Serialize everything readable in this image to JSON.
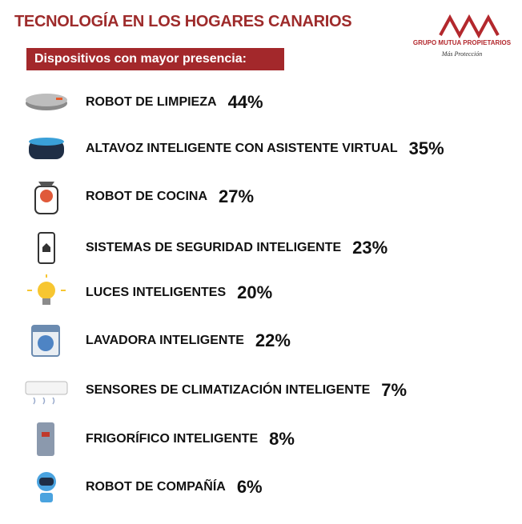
{
  "header": {
    "title": "TECNOLOGÍA EN LOS HOGARES CANARIOS",
    "subtitle": "Dispositivos con mayor presencia:"
  },
  "logo": {
    "name": "GRUPO MUTUA PROPIETARIOS",
    "tagline": "Más Protección"
  },
  "items": [
    {
      "label": "ROBOT DE LIMPIEZA",
      "value": "44%"
    },
    {
      "label": "ALTAVOZ INTELIGENTE CON ASISTENTE VIRTUAL",
      "value": "35%"
    },
    {
      "label": "ROBOT DE COCINA",
      "value": "27%"
    },
    {
      "label": "SISTEMAS DE SEGURIDAD INTELIGENTE",
      "value": "23%"
    },
    {
      "label": "LUCES INTELIGENTES",
      "value": "20%"
    },
    {
      "label": "LAVADORA INTELIGENTE",
      "value": "22%"
    },
    {
      "label": "SENSORES DE CLIMATIZACIÓN INTELIGENTE",
      "value": "7%"
    },
    {
      "label": "FRIGORÍFICO INTELIGENTE",
      "value": "8%"
    },
    {
      "label": "ROBOT DE COMPAÑÍA",
      "value": "6%"
    }
  ]
}
